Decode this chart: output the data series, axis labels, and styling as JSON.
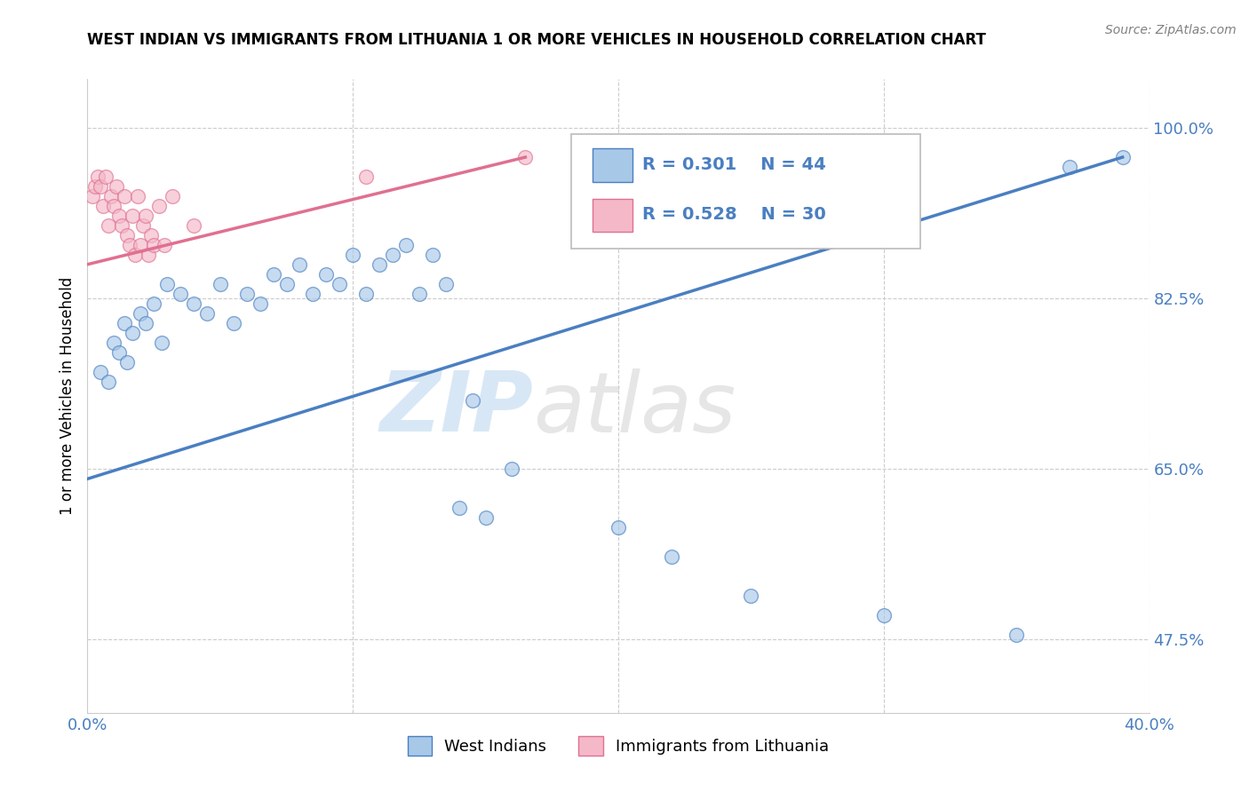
{
  "title": "WEST INDIAN VS IMMIGRANTS FROM LITHUANIA 1 OR MORE VEHICLES IN HOUSEHOLD CORRELATION CHART",
  "source": "Source: ZipAtlas.com",
  "ylabel": "1 or more Vehicles in Household",
  "xlabel": "",
  "xlim": [
    0.0,
    40.0
  ],
  "ylim": [
    40.0,
    105.0
  ],
  "ytick_vals": [
    47.5,
    65.0,
    82.5,
    100.0
  ],
  "ytick_labels": [
    "47.5%",
    "65.0%",
    "82.5%",
    "100.0%"
  ],
  "xtick_vals": [
    0.0,
    10.0,
    20.0,
    30.0,
    40.0
  ],
  "xtick_labels": [
    "0.0%",
    "",
    "",
    "",
    "40.0%"
  ],
  "legend_R1": "R = 0.301",
  "legend_N1": "N = 44",
  "legend_R2": "R = 0.528",
  "legend_N2": "N = 30",
  "legend_label1": "West Indians",
  "legend_label2": "Immigrants from Lithuania",
  "blue_color": "#a8c8e8",
  "pink_color": "#f4b8c8",
  "blue_line_color": "#4a7fc1",
  "pink_line_color": "#e07090",
  "legend_text_color": "#4a7fc1",
  "watermark_text": "ZIP",
  "watermark_text2": "atlas",
  "blue_scatter_x": [
    0.5,
    0.8,
    1.0,
    1.2,
    1.4,
    1.5,
    1.7,
    2.0,
    2.2,
    2.5,
    2.8,
    3.0,
    3.5,
    4.0,
    4.5,
    5.0,
    5.5,
    6.0,
    6.5,
    7.0,
    7.5,
    8.0,
    8.5,
    9.0,
    9.5,
    10.0,
    10.5,
    11.0,
    11.5,
    12.0,
    12.5,
    13.0,
    13.5,
    14.0,
    14.5,
    15.0,
    16.0,
    20.0,
    22.0,
    25.0,
    30.0,
    35.0,
    37.0,
    39.0
  ],
  "blue_scatter_y": [
    75.0,
    74.0,
    78.0,
    77.0,
    80.0,
    76.0,
    79.0,
    81.0,
    80.0,
    82.0,
    78.0,
    84.0,
    83.0,
    82.0,
    81.0,
    84.0,
    80.0,
    83.0,
    82.0,
    85.0,
    84.0,
    86.0,
    83.0,
    85.0,
    84.0,
    87.0,
    83.0,
    86.0,
    87.0,
    88.0,
    83.0,
    87.0,
    84.0,
    61.0,
    72.0,
    60.0,
    65.0,
    59.0,
    56.0,
    52.0,
    50.0,
    48.0,
    96.0,
    97.0
  ],
  "pink_scatter_x": [
    0.2,
    0.3,
    0.4,
    0.5,
    0.6,
    0.7,
    0.8,
    0.9,
    1.0,
    1.1,
    1.2,
    1.3,
    1.4,
    1.5,
    1.6,
    1.7,
    1.8,
    1.9,
    2.0,
    2.1,
    2.2,
    2.3,
    2.4,
    2.5,
    2.7,
    2.9,
    3.2,
    4.0,
    10.5,
    16.5
  ],
  "pink_scatter_y": [
    93.0,
    94.0,
    95.0,
    94.0,
    92.0,
    95.0,
    90.0,
    93.0,
    92.0,
    94.0,
    91.0,
    90.0,
    93.0,
    89.0,
    88.0,
    91.0,
    87.0,
    93.0,
    88.0,
    90.0,
    91.0,
    87.0,
    89.0,
    88.0,
    92.0,
    88.0,
    93.0,
    90.0,
    95.0,
    97.0
  ],
  "blue_line_x": [
    0.0,
    39.0
  ],
  "blue_line_y": [
    64.0,
    97.0
  ],
  "pink_line_x": [
    0.0,
    16.5
  ],
  "pink_line_y": [
    86.0,
    97.0
  ],
  "background_color": "#ffffff",
  "grid_color": "#cccccc"
}
